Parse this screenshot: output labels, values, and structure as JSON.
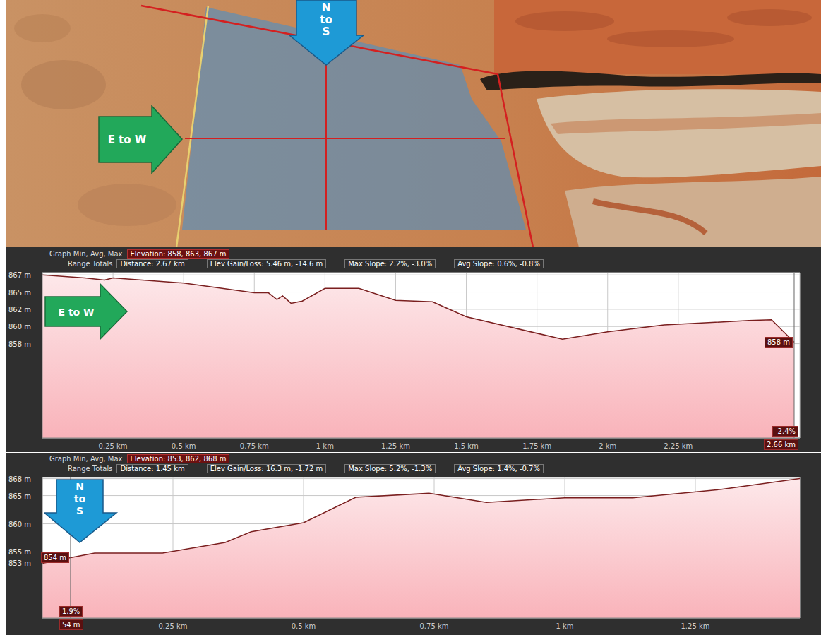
{
  "map": {
    "arrow_down": "N to S",
    "arrow_right": "E to W"
  },
  "chart_data": [
    {
      "type": "area",
      "arrow": "E to W",
      "header": [
        [
          "Graph Min, Avg, Max",
          "Elevation: 858, 863, 867 m"
        ],
        [
          "Range Totals",
          "Distance: 2.67 km",
          "Elev Gain/Loss: 5.46 m, -14.6 m",
          "Max Slope: 2.2%, -3.0%",
          "Avg Slope: 0.6%, -0.8%"
        ]
      ],
      "x": [
        0,
        0.15,
        0.22,
        0.25,
        0.5,
        0.75,
        0.8,
        0.83,
        0.85,
        0.88,
        0.92,
        1.0,
        1.12,
        1.25,
        1.38,
        1.5,
        1.84,
        2.0,
        2.2,
        2.5,
        2.58,
        2.66
      ],
      "values": [
        867,
        866.6,
        866.3,
        866.6,
        865.9,
        864.6,
        864.6,
        863.7,
        864.2,
        863.2,
        863.5,
        865.2,
        865.2,
        863.6,
        863.4,
        861.4,
        858.4,
        859.4,
        860.3,
        860.9,
        861.0,
        858.0
      ],
      "color": "#7a1f1f",
      "xlim": [
        0,
        2.68
      ],
      "xticks": [
        {
          "value": 0.25,
          "label": "0.25 km"
        },
        {
          "value": 0.5,
          "label": "0.5 km"
        },
        {
          "value": 0.75,
          "label": "0.75 km"
        },
        {
          "value": 1,
          "label": "1 km"
        },
        {
          "value": 1.25,
          "label": "1.25 km"
        },
        {
          "value": 1.5,
          "label": "1.5 km"
        },
        {
          "value": 1.75,
          "label": "1.75 km"
        },
        {
          "value": 2,
          "label": "2 km"
        },
        {
          "value": 2.25,
          "label": "2.25 km"
        }
      ],
      "ylim": [
        845.2,
        867.3
      ],
      "yticks": [
        {
          "value": 867,
          "label": "867 m"
        },
        {
          "value": 864.7,
          "label": "865 m"
        },
        {
          "value": 862.4,
          "label": "862 m"
        },
        {
          "value": 860.1,
          "label": "860 m"
        },
        {
          "value": 857.8,
          "label": "858 m"
        }
      ],
      "grid": true,
      "cursor": {
        "x": 2.66,
        "x_label": "2.66 km",
        "y": 858,
        "y_label": "858 m",
        "slope_label": "-2.4%"
      }
    },
    {
      "type": "area",
      "arrow": "N to S",
      "header": [
        [
          "Graph Min, Avg, Max",
          "Elevation: 853, 862, 868 m"
        ],
        [
          "Range Totals",
          "Distance: 1.45 km",
          "Elev Gain/Loss: 16.3 m, -1.72 m",
          "Max Slope: 5.2%, -1.3%",
          "Avg Slope: 1.4%, -0.7%"
        ]
      ],
      "x": [
        0,
        0.054,
        0.1,
        0.23,
        0.35,
        0.4,
        0.5,
        0.6,
        0.74,
        0.85,
        1.0,
        1.13,
        1.3,
        1.45
      ],
      "values": [
        853,
        854,
        854.8,
        854.8,
        856.7,
        858.6,
        860.2,
        864.7,
        865.4,
        863.8,
        864.6,
        864.6,
        866.1,
        868
      ],
      "color": "#7a1f1f",
      "xlim": [
        0,
        1.45
      ],
      "xticks": [
        {
          "value": 0.25,
          "label": "0.25 km"
        },
        {
          "value": 0.5,
          "label": "0.5 km"
        },
        {
          "value": 0.75,
          "label": "0.75 km"
        },
        {
          "value": 1,
          "label": "1 km"
        },
        {
          "value": 1.25,
          "label": "1.25 km"
        }
      ],
      "ylim": [
        843.3,
        868.2
      ],
      "yticks": [
        {
          "value": 868,
          "label": "868 m"
        },
        {
          "value": 865,
          "label": "865 m"
        },
        {
          "value": 860,
          "label": "860 m"
        },
        {
          "value": 855,
          "label": "855 m"
        },
        {
          "value": 853,
          "label": "853 m"
        }
      ],
      "grid": true,
      "cursor": {
        "x": 0.054,
        "x_label": "54 m",
        "y": 854,
        "y_label": "854 m",
        "slope_label": "1.9%"
      }
    }
  ]
}
